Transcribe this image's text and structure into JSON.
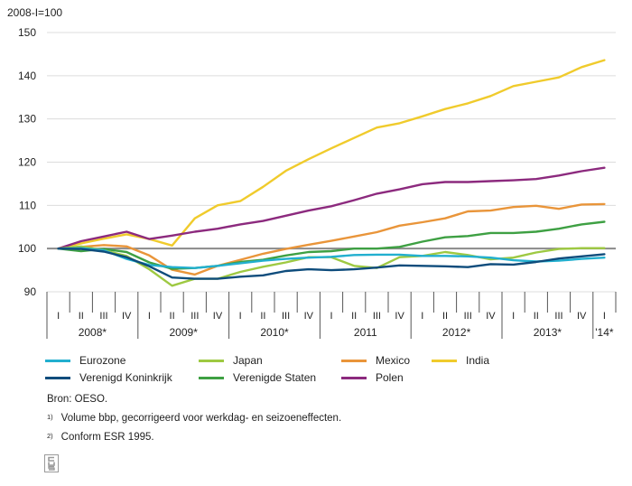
{
  "chart_data": {
    "type": "line",
    "unit_label": "2008-I=100",
    "ylim": [
      90,
      150
    ],
    "yticks": [
      90,
      100,
      110,
      120,
      130,
      140,
      150
    ],
    "quarter_labels": [
      "I",
      "II",
      "III",
      "IV",
      "I",
      "II",
      "III",
      "IV",
      "I",
      "II",
      "III",
      "IV",
      "I",
      "II",
      "III",
      "IV",
      "I",
      "II",
      "III",
      "IV",
      "I",
      "II",
      "III",
      "IV",
      "I"
    ],
    "year_labels": [
      "2008*",
      "2009*",
      "2010*",
      "2011",
      "2012*",
      "2013*",
      "'14*"
    ],
    "reference_line": 100,
    "series": [
      {
        "name": "India",
        "color": "#f0cb2c",
        "values": [
          100,
          101.2,
          102.3,
          103.3,
          102.2,
          100.7,
          107,
          110,
          111,
          114.3,
          118,
          120.7,
          123.2,
          125.6,
          128,
          129,
          130.6,
          132.3,
          133.6,
          135.3,
          137.6,
          138.6,
          139.6,
          142,
          143.6
        ]
      },
      {
        "name": "Polen",
        "color": "#8c2a7e",
        "values": [
          100,
          101.7,
          102.8,
          103.9,
          102.2,
          103,
          103.9,
          104.6,
          105.6,
          106.4,
          107.6,
          108.8,
          109.8,
          111.2,
          112.7,
          113.7,
          114.9,
          115.4,
          115.4,
          115.6,
          115.8,
          116.1,
          116.9,
          117.9,
          118.7
        ]
      },
      {
        "name": "Mexico",
        "color": "#e9953a",
        "values": [
          100,
          100.4,
          100.8,
          100.5,
          98.4,
          95.1,
          94,
          96,
          97.4,
          98.8,
          99.9,
          100.9,
          101.8,
          102.8,
          103.8,
          105.3,
          106.1,
          107,
          108.6,
          108.8,
          109.6,
          109.9,
          109.2,
          110.2,
          110.3
        ]
      },
      {
        "name": "Verenigde Staten",
        "color": "#3ea043",
        "values": [
          100,
          99.4,
          99.9,
          99.2,
          96.8,
          95.3,
          95.5,
          96,
          96.9,
          97.4,
          98.4,
          99.2,
          99.4,
          100,
          100,
          100.4,
          101.6,
          102.6,
          102.9,
          103.6,
          103.6,
          103.9,
          104.6,
          105.6,
          106.2
        ]
      },
      {
        "name": "Japan",
        "color": "#9ec942",
        "values": [
          100,
          100.5,
          99.6,
          98.3,
          95.2,
          91.4,
          93,
          93,
          94.6,
          95.8,
          96.8,
          98,
          98,
          96,
          95.5,
          98,
          98.3,
          99.2,
          98.5,
          97.5,
          97.9,
          99.1,
          99.9,
          100.1,
          100.1
        ]
      },
      {
        "name": "Eurozone",
        "color": "#22afcf",
        "values": [
          100,
          100.1,
          99.6,
          97.6,
          96.2,
          95.7,
          95.5,
          96,
          96.6,
          97.2,
          97.6,
          97.9,
          98.1,
          98.5,
          98.6,
          98.6,
          98.3,
          98.3,
          98.2,
          97.9,
          97.3,
          97,
          97.2,
          97.6,
          97.9
        ]
      },
      {
        "name": "Verenigd Koninkrijk",
        "color": "#0e4c7c",
        "values": [
          100,
          99.9,
          99.3,
          98,
          95.9,
          93.3,
          93,
          93,
          93.5,
          93.8,
          94.8,
          95.2,
          95,
          95.2,
          95.6,
          96.1,
          96,
          95.9,
          95.7,
          96.4,
          96.3,
          96.9,
          97.7,
          98.2,
          98.7
        ]
      }
    ]
  },
  "legend": [
    {
      "label": "Eurozone",
      "color": "#22afcf"
    },
    {
      "label": "Japan",
      "color": "#9ec942"
    },
    {
      "label": "Mexico",
      "color": "#e9953a"
    },
    {
      "label": "India",
      "color": "#f0cb2c"
    },
    {
      "label": "Verenigd Koninkrijk",
      "color": "#0e4c7c"
    },
    {
      "label": "Verenigde Staten",
      "color": "#3ea043"
    },
    {
      "label": "Polen",
      "color": "#8c2a7e"
    }
  ],
  "notes": {
    "source": "Bron: OESO.",
    "footnote1_mark": "1)",
    "footnote1": "Volume bbp, gecorrigeerd voor werkdag- en seizoeneffecten.",
    "footnote2_mark": "2)",
    "footnote2": "Conform ESR 1995."
  },
  "logo": {
    "name": "cbs-logo",
    "text": "cbs"
  }
}
